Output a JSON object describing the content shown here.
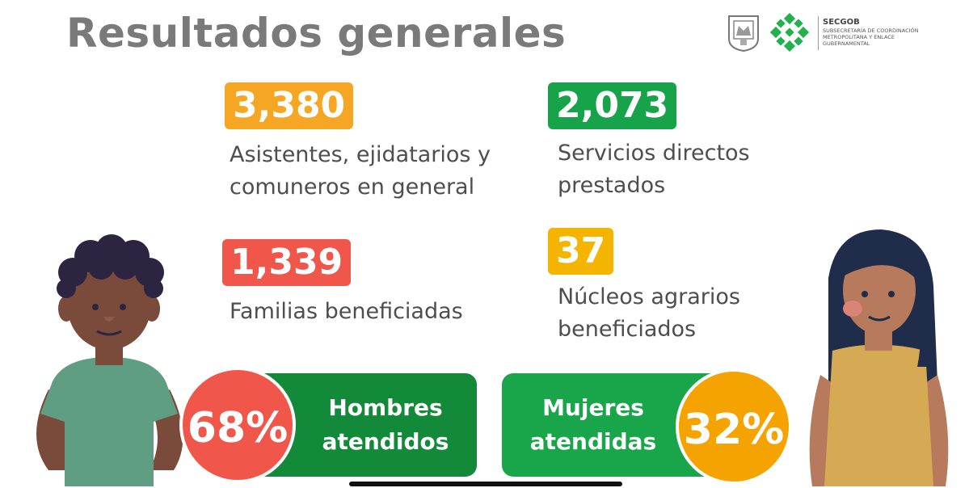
{
  "title": "Resultados generales",
  "logo": {
    "org": "SECGOB",
    "line1": "SUBSECRETARÍA DE COORDINACIÓN",
    "line2": "METROPOLITANA Y ENLACE",
    "line3": "GUBERNAMENTAL"
  },
  "stats": [
    {
      "value": "3,380",
      "label": [
        "Asistentes, ejidatarios y",
        "comuneros en general"
      ],
      "color": "#f5a623"
    },
    {
      "value": "2,073",
      "label": [
        "Servicios directos",
        "prestados"
      ],
      "color": "#16a34a"
    },
    {
      "value": "1,339",
      "label": [
        "Familias beneficiadas"
      ],
      "color": "#f0564a"
    },
    {
      "value": "37",
      "label": [
        "Núcleos agrarios",
        "beneficiados"
      ],
      "color": "#f5b400"
    }
  ],
  "men": {
    "percent": "68%",
    "label": [
      "Hombres",
      "atendidos"
    ],
    "circle_color": "#f0564a",
    "pill_color": "#138a3a"
  },
  "women": {
    "percent": "32%",
    "label": [
      "Mujeres",
      "atendidas"
    ],
    "circle_color": "#f5a300",
    "pill_color": "#19a64a"
  },
  "colors": {
    "title": "#7a7a7a",
    "logo_green": "#23b14d"
  }
}
